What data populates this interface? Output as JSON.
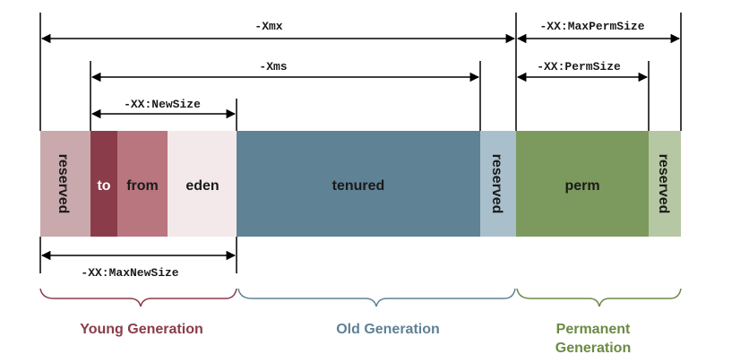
{
  "segments": {
    "reserved_young": "reserved",
    "to": "to",
    "from": "from",
    "eden": "eden",
    "tenured": "tenured",
    "reserved_old": "reserved",
    "perm": "perm",
    "reserved_perm": "reserved"
  },
  "dimensions": {
    "xmx": "-Xmx",
    "max_perm_size": "-XX:MaxPermSize",
    "xms": "-Xms",
    "perm_size": "-XX:PermSize",
    "new_size": "-XX:NewSize",
    "max_new_size": "-XX:MaxNewSize"
  },
  "generations": {
    "young": "Young Generation",
    "old": "Old Generation",
    "permanent_line1": "Permanent",
    "permanent_line2": "Generation"
  },
  "colors": {
    "reserved_young": "#c9a9ac",
    "to": "#8a3c4a",
    "from": "#b9767f",
    "eden": "#f3e9ea",
    "tenured": "#5f8295",
    "reserved_old": "#a9bfcc",
    "perm": "#7c9a5e",
    "reserved_perm": "#b6c8a3",
    "young_text": "#8a3c4a",
    "old_text": "#5f8295",
    "perm_text": "#6b8a45"
  }
}
